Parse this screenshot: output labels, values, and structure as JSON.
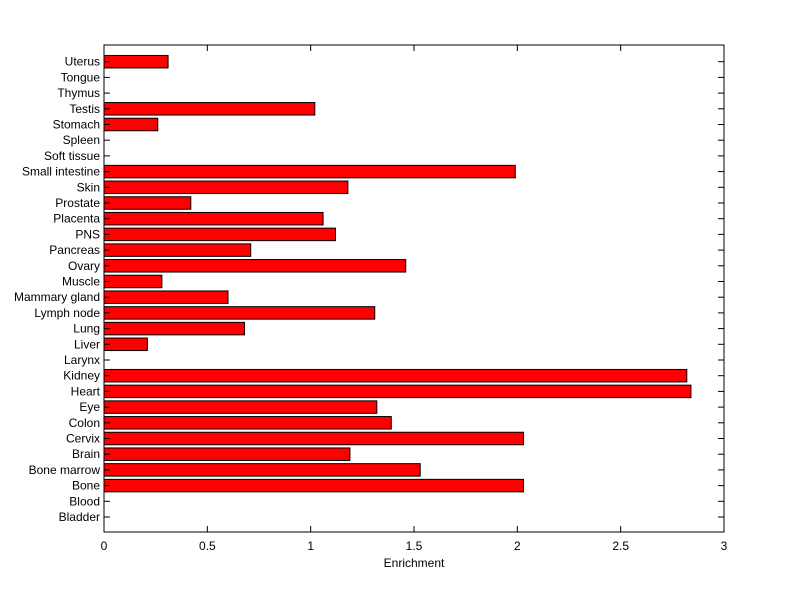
{
  "chart_data": {
    "type": "bar",
    "orientation": "horizontal",
    "title": "",
    "xlabel": "Enrichment",
    "ylabel": "",
    "xlim": [
      0,
      3
    ],
    "xticks": [
      "0",
      "0.5",
      "1",
      "1.5",
      "2",
      "2.5",
      "3"
    ],
    "grid": false,
    "bar_color": "#ff0000",
    "bar_edge_color": "#000000",
    "categories": [
      "Bladder",
      "Blood",
      "Bone",
      "Bone marrow",
      "Brain",
      "Cervix",
      "Colon",
      "Eye",
      "Heart",
      "Kidney",
      "Larynx",
      "Liver",
      "Lung",
      "Lymph node",
      "Mammary gland",
      "Muscle",
      "Ovary",
      "Pancreas",
      "PNS",
      "Placenta",
      "Prostate",
      "Skin",
      "Small intestine",
      "Soft tissue",
      "Spleen",
      "Stomach",
      "Testis",
      "Thymus",
      "Tongue",
      "Uterus"
    ],
    "values": [
      0,
      0,
      2.03,
      1.53,
      1.19,
      2.03,
      1.39,
      1.32,
      2.84,
      2.82,
      0,
      0.21,
      0.68,
      1.31,
      0.6,
      0.28,
      1.46,
      0.71,
      1.12,
      1.06,
      0.42,
      1.18,
      1.99,
      0,
      0,
      0.26,
      1.02,
      0,
      0,
      0.31
    ]
  }
}
